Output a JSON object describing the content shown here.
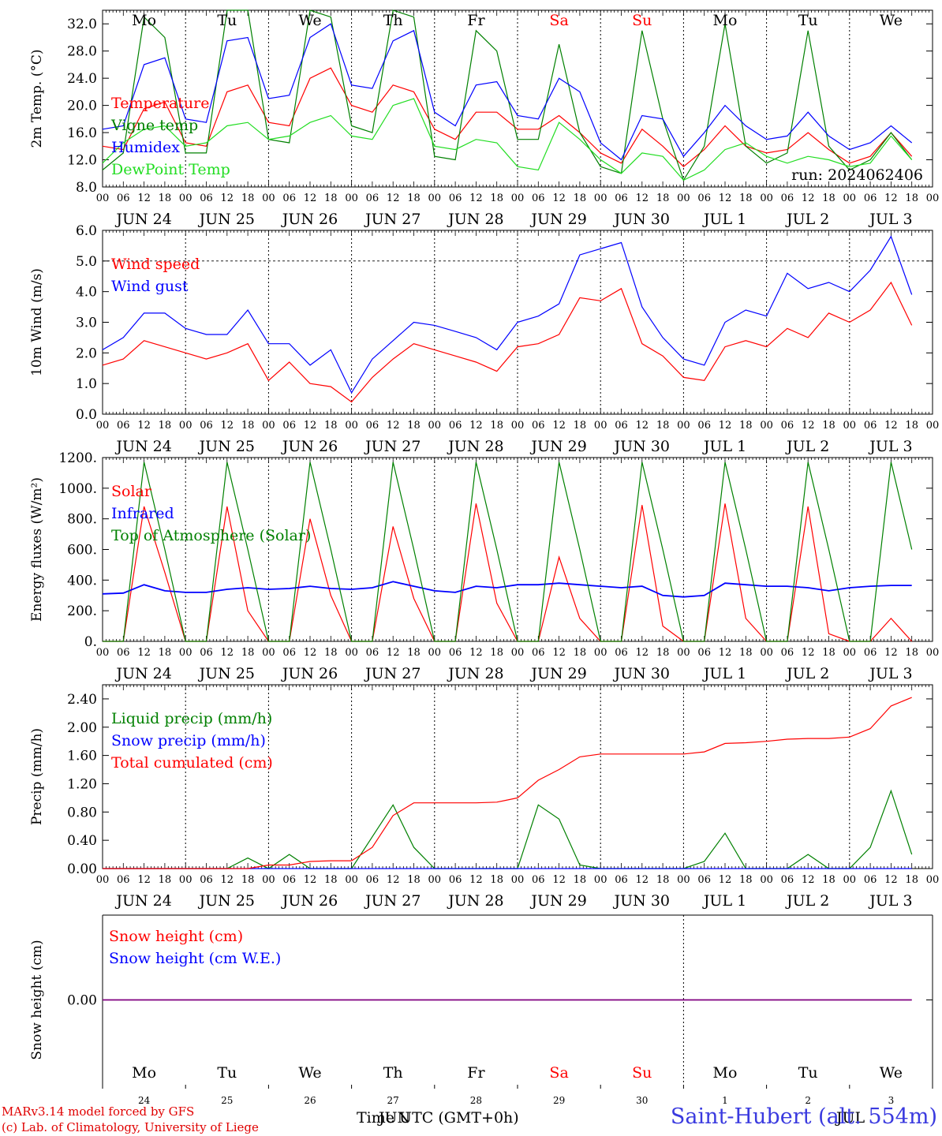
{
  "run_label": "run: 2024062406",
  "footer": {
    "model": "MARv3.14 model forced by GFS",
    "copyright": "(c) Lab. of Climatology, University of Liege",
    "station": "Saint-Hubert (alt. 554m)",
    "time_label": "Time UTC (GMT+0h)"
  },
  "colors": {
    "red": "#ff0000",
    "green": "#008000",
    "blue": "#0000ff",
    "lightgreen": "#22dd22",
    "purple": "#800080"
  },
  "days": [
    "Mo",
    "Tu",
    "We",
    "Th",
    "Fr",
    "Sa",
    "Su",
    "Mo",
    "Tu",
    "We"
  ],
  "weekend_days": [
    "Sa",
    "Su"
  ],
  "date_labels": [
    "JUN 24",
    "JUN 25",
    "JUN 26",
    "JUN 27",
    "JUN 28",
    "JUN 29",
    "JUN 30",
    "JUL  1",
    "JUL  2",
    "JUL  3"
  ],
  "hour_ticks": [
    "00",
    "06",
    "12",
    "18"
  ],
  "bottom_day_numbers": [
    "24",
    "25",
    "26",
    "27",
    "28",
    "29",
    "30",
    "1",
    "2",
    "3"
  ],
  "bottom_month_labels": [
    "JUN",
    "JUL"
  ],
  "chart_data": [
    {
      "type": "line",
      "ylabel": "2m Temp. (°C)",
      "ylim": [
        8,
        34
      ],
      "yticks": [
        "8.0",
        "12.0",
        "16.0",
        "20.0",
        "24.0",
        "28.0",
        "32.0"
      ],
      "x": "hours from 2024-06-24 00 UTC, 6-hour steps",
      "series": [
        {
          "name": "Temperature",
          "color": "#ff0000",
          "values": [
            14.0,
            13.5,
            19.5,
            20.5,
            14.5,
            14.0,
            22.0,
            23.0,
            17.5,
            17.0,
            24.0,
            25.5,
            20.0,
            19.0,
            23.0,
            22.0,
            16.5,
            15.0,
            19.0,
            19.0,
            16.5,
            16.5,
            18.5,
            16.0,
            13.0,
            11.5,
            16.5,
            14.0,
            11.0,
            13.5,
            17.0,
            14.0,
            13.0,
            13.5,
            16.0,
            13.5,
            11.5,
            12.5,
            16.0,
            12.5
          ]
        },
        {
          "name": "Vigne temp",
          "color": "#008000",
          "values": [
            10.5,
            13.0,
            33.0,
            30.0,
            13.0,
            13.0,
            36.0,
            34.0,
            15.0,
            14.5,
            35.0,
            33.0,
            17.0,
            16.0,
            34.0,
            33.0,
            12.5,
            12.0,
            31.0,
            28.0,
            15.0,
            15.0,
            29.0,
            16.0,
            11.0,
            10.0,
            31.0,
            18.0,
            9.0,
            14.0,
            32.0,
            14.0,
            11.5,
            13.0,
            31.0,
            14.0,
            10.5,
            12.0,
            16.0,
            12.0
          ]
        },
        {
          "name": "Humidex",
          "color": "#0000ff",
          "values": [
            16.5,
            17.0,
            26.0,
            27.0,
            18.0,
            17.5,
            29.5,
            30.0,
            21.0,
            21.5,
            30.0,
            32.0,
            23.0,
            22.5,
            29.5,
            31.0,
            19.0,
            17.0,
            23.0,
            23.5,
            18.5,
            18.0,
            24.0,
            22.0,
            14.5,
            12.0,
            18.5,
            18.0,
            12.5,
            16.0,
            20.0,
            17.0,
            15.0,
            15.5,
            19.0,
            15.5,
            13.5,
            14.5,
            17.0,
            14.5
          ]
        },
        {
          "name": "DewPoint Temp",
          "color": "#22dd22",
          "values": [
            11.5,
            14.5,
            16.5,
            17.0,
            14.0,
            14.5,
            17.0,
            17.5,
            15.0,
            15.5,
            17.5,
            18.5,
            15.5,
            15.0,
            20.0,
            21.0,
            14.0,
            13.5,
            15.0,
            14.5,
            11.0,
            10.5,
            17.5,
            15.0,
            12.0,
            10.0,
            13.0,
            12.5,
            9.0,
            10.5,
            13.5,
            14.5,
            12.5,
            11.5,
            12.5,
            12.0,
            11.0,
            11.5,
            15.5,
            12.0
          ]
        }
      ]
    },
    {
      "type": "line",
      "ylabel": "10m Wind (m/s)",
      "ylim": [
        0,
        6
      ],
      "yticks": [
        "0.0",
        "1.0",
        "2.0",
        "3.0",
        "4.0",
        "5.0",
        "6.0"
      ],
      "series": [
        {
          "name": "Wind speed",
          "color": "#ff0000",
          "values": [
            1.6,
            1.8,
            2.4,
            2.2,
            2.0,
            1.8,
            2.0,
            2.3,
            1.1,
            1.7,
            1.0,
            0.9,
            0.4,
            1.2,
            1.8,
            2.3,
            2.1,
            1.9,
            1.7,
            1.4,
            2.2,
            2.3,
            2.6,
            3.8,
            3.7,
            4.1,
            2.3,
            1.9,
            1.2,
            1.1,
            2.2,
            2.4,
            2.2,
            2.8,
            2.5,
            3.3,
            3.0,
            3.4,
            4.3,
            2.9
          ]
        },
        {
          "name": "Wind gust",
          "color": "#0000ff",
          "values": [
            2.1,
            2.5,
            3.3,
            3.3,
            2.8,
            2.6,
            2.6,
            3.4,
            2.3,
            2.3,
            1.6,
            2.1,
            0.7,
            1.8,
            2.4,
            3.0,
            2.9,
            2.7,
            2.5,
            2.1,
            3.0,
            3.2,
            3.6,
            5.2,
            5.4,
            5.6,
            3.5,
            2.5,
            1.8,
            1.6,
            3.0,
            3.4,
            3.2,
            4.6,
            4.1,
            4.3,
            4.0,
            4.7,
            5.8,
            3.9
          ]
        }
      ]
    },
    {
      "type": "line",
      "ylabel": "Energy fluxes (W/m²)",
      "ylim": [
        0,
        1200
      ],
      "yticks": [
        "0.",
        "200.",
        "400.",
        "600.",
        "800.",
        "1000.",
        "1200."
      ],
      "series": [
        {
          "name": "Solar",
          "color": "#ff0000",
          "values": [
            0,
            0,
            880,
            450,
            0,
            0,
            880,
            200,
            0,
            0,
            800,
            300,
            0,
            0,
            750,
            280,
            0,
            0,
            900,
            250,
            0,
            0,
            550,
            150,
            0,
            0,
            890,
            100,
            0,
            0,
            900,
            150,
            0,
            0,
            880,
            50,
            0,
            0,
            150,
            0
          ]
        },
        {
          "name": "Infrared",
          "color": "#0000ff",
          "values": [
            310,
            315,
            370,
            330,
            320,
            320,
            340,
            350,
            340,
            345,
            360,
            345,
            340,
            350,
            390,
            360,
            330,
            320,
            360,
            350,
            370,
            370,
            380,
            370,
            360,
            350,
            360,
            300,
            290,
            300,
            380,
            370,
            360,
            360,
            350,
            330,
            350,
            360,
            365,
            365
          ]
        },
        {
          "name": "Top of Atmosphere (Solar)",
          "color": "#008000",
          "values": [
            0,
            0,
            1170,
            600,
            0,
            0,
            1170,
            600,
            0,
            0,
            1170,
            600,
            0,
            0,
            1170,
            600,
            0,
            0,
            1170,
            600,
            0,
            0,
            1170,
            600,
            0,
            0,
            1170,
            600,
            0,
            0,
            1170,
            600,
            0,
            0,
            1170,
            600,
            0,
            0,
            1170,
            600
          ]
        }
      ]
    },
    {
      "type": "line",
      "ylabel": "Precip (mm/h)",
      "ylim": [
        0,
        2.6
      ],
      "yticks": [
        "0.00",
        "0.40",
        "0.80",
        "1.20",
        "1.60",
        "2.00",
        "2.40"
      ],
      "series": [
        {
          "name": "Liquid precip (mm/h)",
          "color": "#008000",
          "values": [
            0,
            0,
            0,
            0,
            0,
            0,
            0,
            0.15,
            0,
            0.2,
            0,
            0,
            0,
            0.45,
            0.9,
            0.3,
            0,
            0,
            0,
            0,
            0,
            0.9,
            0.7,
            0.05,
            0,
            0,
            0,
            0,
            0,
            0.1,
            0.5,
            0,
            0,
            0,
            0.2,
            0,
            0,
            0.3,
            1.1,
            0.2
          ]
        },
        {
          "name": "Snow precip (mm/h)",
          "color": "#0000ff",
          "values": [
            0,
            0,
            0,
            0,
            0,
            0,
            0,
            0,
            0,
            0,
            0,
            0,
            0,
            0,
            0,
            0,
            0,
            0,
            0,
            0,
            0,
            0,
            0,
            0,
            0,
            0,
            0,
            0,
            0,
            0,
            0,
            0,
            0,
            0,
            0,
            0,
            0,
            0,
            0,
            0
          ]
        },
        {
          "name": "Total cumulated (cm)",
          "color": "#ff0000",
          "values": [
            0,
            0,
            0,
            0,
            0,
            0,
            0,
            0,
            0.05,
            0.05,
            0.1,
            0.11,
            0.11,
            0.3,
            0.75,
            0.93,
            0.93,
            0.93,
            0.93,
            0.94,
            1.0,
            1.25,
            1.4,
            1.58,
            1.62,
            1.62,
            1.62,
            1.62,
            1.62,
            1.65,
            1.77,
            1.78,
            1.8,
            1.83,
            1.84,
            1.84,
            1.86,
            1.98,
            2.3,
            2.42
          ]
        }
      ]
    },
    {
      "type": "line",
      "ylabel": "Snow height (cm)",
      "yticks": [
        "0.00"
      ],
      "series": [
        {
          "name": "Snow height (cm)",
          "color": "#ff0000",
          "values": [
            0,
            0,
            0,
            0,
            0,
            0,
            0,
            0,
            0,
            0,
            0,
            0,
            0,
            0,
            0,
            0,
            0,
            0,
            0,
            0,
            0,
            0,
            0,
            0,
            0,
            0,
            0,
            0,
            0,
            0,
            0,
            0,
            0,
            0,
            0,
            0,
            0,
            0,
            0,
            0
          ]
        },
        {
          "name": "Snow height (cm W.E.)",
          "color": "#0000ff",
          "values": [
            0,
            0,
            0,
            0,
            0,
            0,
            0,
            0,
            0,
            0,
            0,
            0,
            0,
            0,
            0,
            0,
            0,
            0,
            0,
            0,
            0,
            0,
            0,
            0,
            0,
            0,
            0,
            0,
            0,
            0,
            0,
            0,
            0,
            0,
            0,
            0,
            0,
            0,
            0,
            0
          ]
        }
      ]
    }
  ]
}
